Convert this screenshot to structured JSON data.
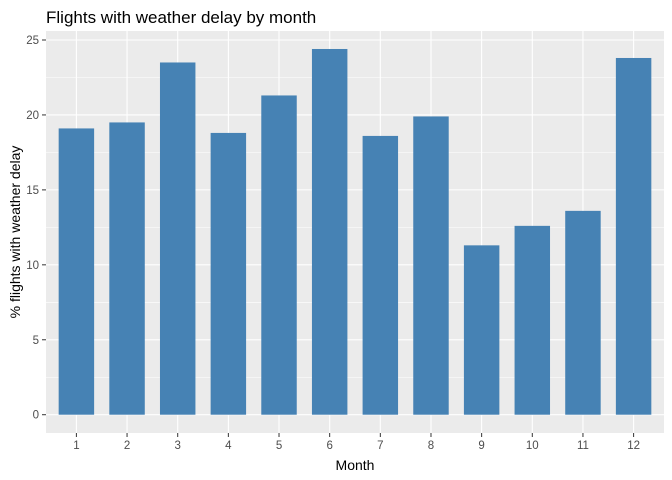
{
  "chart_data": {
    "type": "bar",
    "title": "Flights with weather delay by month",
    "xlabel": "Month",
    "ylabel": "% flights with weather delay",
    "categories": [
      "1",
      "2",
      "3",
      "4",
      "5",
      "6",
      "7",
      "8",
      "9",
      "10",
      "11",
      "12"
    ],
    "values": [
      19.1,
      19.5,
      23.5,
      18.8,
      21.3,
      24.4,
      18.6,
      19.9,
      11.3,
      12.6,
      13.6,
      23.8
    ],
    "ylim": [
      -1.22,
      25.6
    ],
    "yticks": [
      0,
      5,
      10,
      15,
      20,
      25
    ],
    "grid": true,
    "bar_color": "#4682B4",
    "panel_color": "#EBEBEB",
    "grid_color": "#FFFFFF"
  }
}
